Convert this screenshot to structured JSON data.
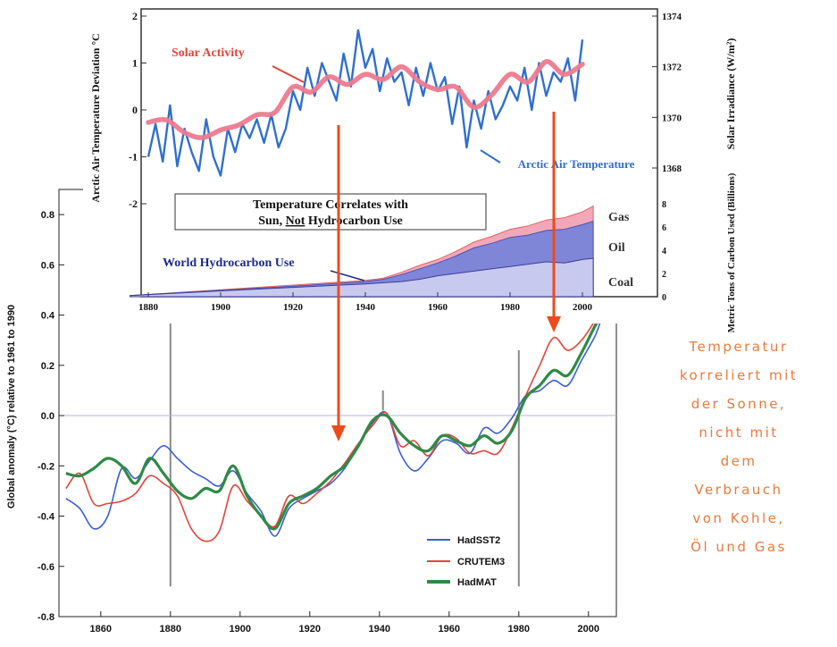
{
  "colors": {
    "hadsst2": "#3a5fcf",
    "crutem3": "#e0453a",
    "hadmat": "#2f8a45",
    "arctic": "#2f6fd0",
    "solar": "#ee7a8e",
    "gas": "#f2a8b8",
    "oil": "#7f86d8",
    "coal": "#c7c9ef",
    "arrow": "#ee4a1c",
    "caption": "#e87a3c"
  },
  "caption": {
    "lines": [
      "Temperatur",
      "korreliert mit",
      "der Sonne,",
      "nicht mit",
      "dem",
      "Verbrauch",
      "von Kohle,",
      "Öl und Gas"
    ]
  },
  "chart_data": [
    {
      "type": "line",
      "title": "",
      "xlabel": "",
      "ylabel": "Global anomaly (°C) relative to 1961 to 1990",
      "xlim": [
        1848,
        2008
      ],
      "ylim": [
        -0.8,
        0.9
      ],
      "xticks": [
        "1860",
        "1880",
        "1900",
        "1920",
        "1940",
        "1960",
        "1980",
        "2000"
      ],
      "yticks": [
        "0.8",
        "0.6",
        "0.4",
        "0.2",
        "0.0",
        "-0.2",
        "-0.4",
        "-0.6",
        "-0.8"
      ],
      "legend_position": "bottom-center",
      "reference_lines_x": [
        1880,
        1941,
        1980
      ],
      "x": [
        1850,
        1854,
        1858,
        1862,
        1866,
        1870,
        1874,
        1878,
        1882,
        1886,
        1890,
        1894,
        1898,
        1902,
        1906,
        1910,
        1914,
        1918,
        1922,
        1926,
        1930,
        1934,
        1938,
        1942,
        1946,
        1950,
        1954,
        1958,
        1962,
        1966,
        1970,
        1974,
        1978,
        1982,
        1986,
        1990,
        1994,
        1998,
        2002,
        2004
      ],
      "series": [
        {
          "name": "HadSST2",
          "values": [
            -0.33,
            -0.37,
            -0.45,
            -0.4,
            -0.21,
            -0.25,
            -0.18,
            -0.12,
            -0.17,
            -0.22,
            -0.25,
            -0.28,
            -0.22,
            -0.31,
            -0.38,
            -0.48,
            -0.37,
            -0.33,
            -0.3,
            -0.27,
            -0.21,
            -0.12,
            -0.03,
            0.01,
            -0.15,
            -0.22,
            -0.17,
            -0.1,
            -0.11,
            -0.15,
            -0.05,
            -0.07,
            -0.01,
            0.08,
            0.1,
            0.14,
            0.12,
            0.22,
            0.32,
            0.4
          ]
        },
        {
          "name": "CRUTEM3",
          "values": [
            -0.29,
            -0.23,
            -0.35,
            -0.35,
            -0.34,
            -0.31,
            -0.24,
            -0.27,
            -0.32,
            -0.45,
            -0.5,
            -0.46,
            -0.28,
            -0.34,
            -0.4,
            -0.44,
            -0.32,
            -0.35,
            -0.31,
            -0.26,
            -0.19,
            -0.11,
            -0.04,
            0.01,
            -0.12,
            -0.1,
            -0.16,
            -0.08,
            -0.09,
            -0.15,
            -0.14,
            -0.15,
            -0.05,
            0.08,
            0.2,
            0.31,
            0.26,
            0.3,
            0.38,
            0.42
          ]
        },
        {
          "name": "HadMAT",
          "values": [
            -0.23,
            -0.24,
            -0.21,
            -0.17,
            -0.2,
            -0.27,
            -0.17,
            -0.23,
            -0.3,
            -0.33,
            -0.29,
            -0.3,
            -0.2,
            -0.32,
            -0.4,
            -0.45,
            -0.35,
            -0.32,
            -0.29,
            -0.24,
            -0.2,
            -0.12,
            -0.02,
            0.0,
            -0.07,
            -0.12,
            -0.14,
            -0.08,
            -0.1,
            -0.12,
            -0.08,
            -0.11,
            -0.06,
            0.07,
            0.12,
            0.18,
            0.16,
            0.25,
            0.36,
            0.4
          ]
        }
      ]
    },
    {
      "type": "line",
      "title": "",
      "xlabel": "",
      "ylabel": "Arctic Air Temperature Deviation °C",
      "ylabel_right": "Solar Irradiance (W/m²)",
      "xlim": [
        1875,
        2005
      ],
      "ylim": [
        -2.3,
        2
      ],
      "ylim_right": [
        1367.2,
        1374
      ],
      "xticks": [
        "1880",
        "1900",
        "1920",
        "1940",
        "1960",
        "1980",
        "2000"
      ],
      "yticks": [
        "2",
        "1",
        "0",
        "-1",
        "-2"
      ],
      "yticks_right": [
        "1374",
        "1372",
        "1370",
        "1368"
      ],
      "annotations": [
        "Solar Activity",
        "Arctic Air Temperature",
        "Temperature Correlates with",
        "Sun,",
        "Not",
        "Hydrocarbon Use"
      ],
      "series": [
        {
          "name": "Arctic Air Temperature",
          "x": [
            1880,
            1882,
            1884,
            1886,
            1888,
            1890,
            1892,
            1894,
            1896,
            1898,
            1900,
            1902,
            1904,
            1906,
            1908,
            1910,
            1912,
            1914,
            1916,
            1918,
            1920,
            1922,
            1924,
            1926,
            1928,
            1930,
            1932,
            1934,
            1936,
            1938,
            1940,
            1942,
            1944,
            1946,
            1948,
            1950,
            1952,
            1954,
            1956,
            1958,
            1960,
            1962,
            1964,
            1966,
            1968,
            1970,
            1972,
            1974,
            1976,
            1978,
            1980,
            1982,
            1984,
            1986,
            1988,
            1990,
            1992,
            1994,
            1996,
            1998,
            2000
          ],
          "values": [
            -1.0,
            -0.3,
            -1.1,
            0.1,
            -1.2,
            -0.4,
            -0.9,
            -1.3,
            -0.2,
            -1.0,
            -1.4,
            -0.4,
            -0.9,
            -0.3,
            -0.6,
            -0.2,
            -0.7,
            -0.1,
            -0.8,
            -0.4,
            0.4,
            0.0,
            0.9,
            0.3,
            1.0,
            0.6,
            0.2,
            1.2,
            0.5,
            1.7,
            0.9,
            1.3,
            0.4,
            1.1,
            0.6,
            0.8,
            0.1,
            0.9,
            0.3,
            1.0,
            0.4,
            0.7,
            -0.3,
            0.5,
            -0.8,
            0.2,
            -0.4,
            0.4,
            -0.2,
            0.1,
            0.5,
            0.2,
            0.9,
            0.0,
            1.0,
            0.3,
            0.8,
            0.6,
            1.1,
            0.2,
            1.5
          ]
        },
        {
          "name": "Solar Activity",
          "x": [
            1880,
            1885,
            1890,
            1895,
            1900,
            1905,
            1910,
            1915,
            1920,
            1925,
            1930,
            1935,
            1940,
            1945,
            1950,
            1955,
            1960,
            1965,
            1970,
            1975,
            1980,
            1985,
            1990,
            1995,
            2000
          ],
          "values": [
            1369.8,
            1369.9,
            1369.4,
            1369.2,
            1369.5,
            1369.7,
            1370.1,
            1370.2,
            1371.2,
            1371.0,
            1371.6,
            1371.3,
            1371.7,
            1371.5,
            1372.0,
            1371.4,
            1371.1,
            1371.2,
            1370.4,
            1370.9,
            1371.7,
            1371.4,
            1372.2,
            1371.7,
            1372.1
          ]
        }
      ]
    },
    {
      "type": "area",
      "title": "",
      "ylabel": "Metric Tons of Carbon Used (Billions)",
      "xlim": [
        1875,
        2005
      ],
      "ylim": [
        0,
        8
      ],
      "yticks": [
        "8",
        "6",
        "4",
        "2",
        "0"
      ],
      "annotations": [
        "World Hydrocarbon Use"
      ],
      "x": [
        1875,
        1900,
        1920,
        1940,
        1945,
        1950,
        1955,
        1960,
        1965,
        1970,
        1975,
        1980,
        1985,
        1990,
        1995,
        2000,
        2003
      ],
      "series": [
        {
          "name": "Coal",
          "values": [
            0.1,
            0.5,
            0.8,
            1.1,
            1.2,
            1.3,
            1.5,
            1.8,
            2.0,
            2.2,
            2.4,
            2.6,
            2.8,
            3.0,
            2.9,
            3.2,
            3.3
          ]
        },
        {
          "name": "Oil",
          "values": [
            0.1,
            0.55,
            0.9,
            1.3,
            1.5,
            1.9,
            2.4,
            2.9,
            3.5,
            4.2,
            4.6,
            5.1,
            5.3,
            5.7,
            5.8,
            6.2,
            6.5
          ]
        },
        {
          "name": "Gas",
          "values": [
            0.1,
            0.6,
            1.0,
            1.4,
            1.6,
            2.1,
            2.7,
            3.2,
            3.9,
            4.7,
            5.2,
            5.8,
            6.1,
            6.6,
            6.8,
            7.3,
            7.8
          ]
        }
      ]
    }
  ]
}
